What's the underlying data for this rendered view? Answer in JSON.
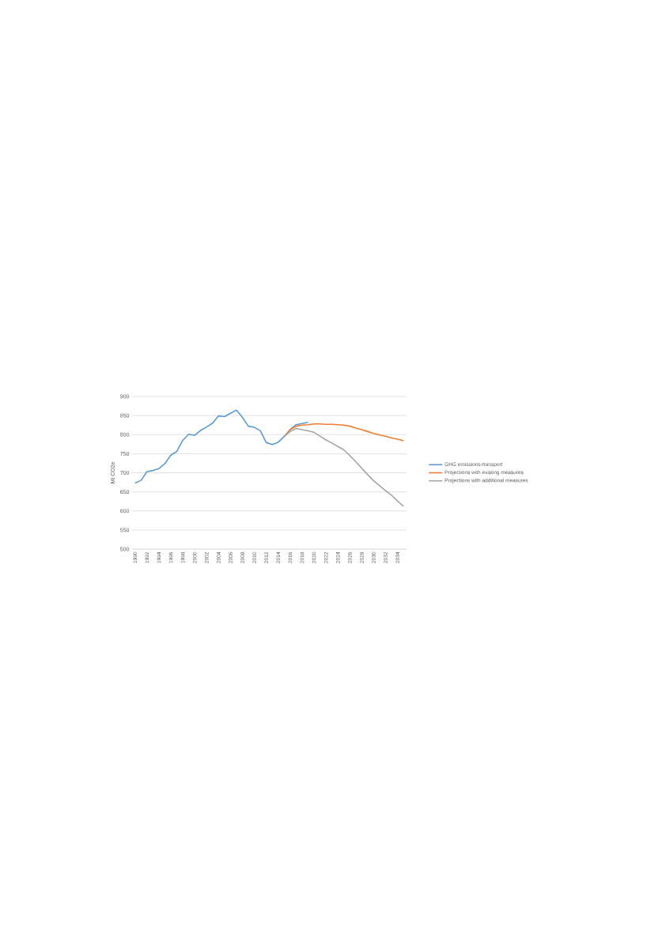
{
  "chart_data": {
    "type": "line",
    "ylabel": "Mt CO2e",
    "categories": [
      "1990",
      null,
      "1992",
      null,
      "1994",
      null,
      "1996",
      null,
      "1998",
      null,
      "2000",
      null,
      "2002",
      null,
      "2004",
      null,
      "2006",
      null,
      "2008",
      null,
      "2010",
      null,
      "2012",
      null,
      "2014",
      null,
      "2016",
      null,
      "2018",
      null,
      "2020",
      null,
      "2022",
      null,
      "2024",
      null,
      "2026",
      null,
      "2028",
      null,
      "2030",
      null,
      "2032",
      null,
      "2034",
      null
    ],
    "series": [
      {
        "name": "GHG emissions-transport",
        "color": "#5b9bd5",
        "values": [
          673,
          680,
          703,
          706,
          711,
          724,
          746,
          756,
          785,
          801,
          798,
          811,
          820,
          830,
          849,
          847,
          856,
          864,
          845,
          822,
          819,
          810,
          779,
          774,
          780,
          795,
          813,
          826,
          829,
          832,
          null,
          null,
          null,
          null,
          null,
          null,
          null,
          null,
          null,
          null,
          null,
          null,
          null,
          null,
          null,
          null
        ]
      },
      {
        "name": "Projections with existing measures",
        "color": "#ed7d31",
        "values": [
          null,
          null,
          null,
          null,
          null,
          null,
          null,
          null,
          null,
          null,
          null,
          null,
          null,
          null,
          null,
          null,
          null,
          null,
          null,
          null,
          null,
          null,
          null,
          null,
          null,
          795,
          813,
          822,
          825,
          826,
          828,
          828,
          827,
          827,
          826,
          825,
          822,
          817,
          813,
          808,
          803,
          799,
          796,
          791,
          788,
          784
        ]
      },
      {
        "name": "Projections with additional measures",
        "color": "#a5a5a5",
        "values": [
          null,
          null,
          null,
          null,
          null,
          null,
          null,
          null,
          null,
          null,
          null,
          null,
          null,
          null,
          null,
          null,
          null,
          null,
          null,
          null,
          null,
          null,
          null,
          null,
          null,
          795,
          808,
          816,
          813,
          810,
          806,
          796,
          786,
          778,
          769,
          760,
          745,
          729,
          712,
          695,
          679,
          666,
          653,
          641,
          626,
          612
        ]
      }
    ],
    "ylim": [
      500,
      900
    ],
    "yticks": [
      500,
      550,
      600,
      650,
      700,
      750,
      800,
      850,
      900
    ],
    "grid": "y",
    "legend": "right",
    "marker": "none",
    "line_style": "solid"
  }
}
